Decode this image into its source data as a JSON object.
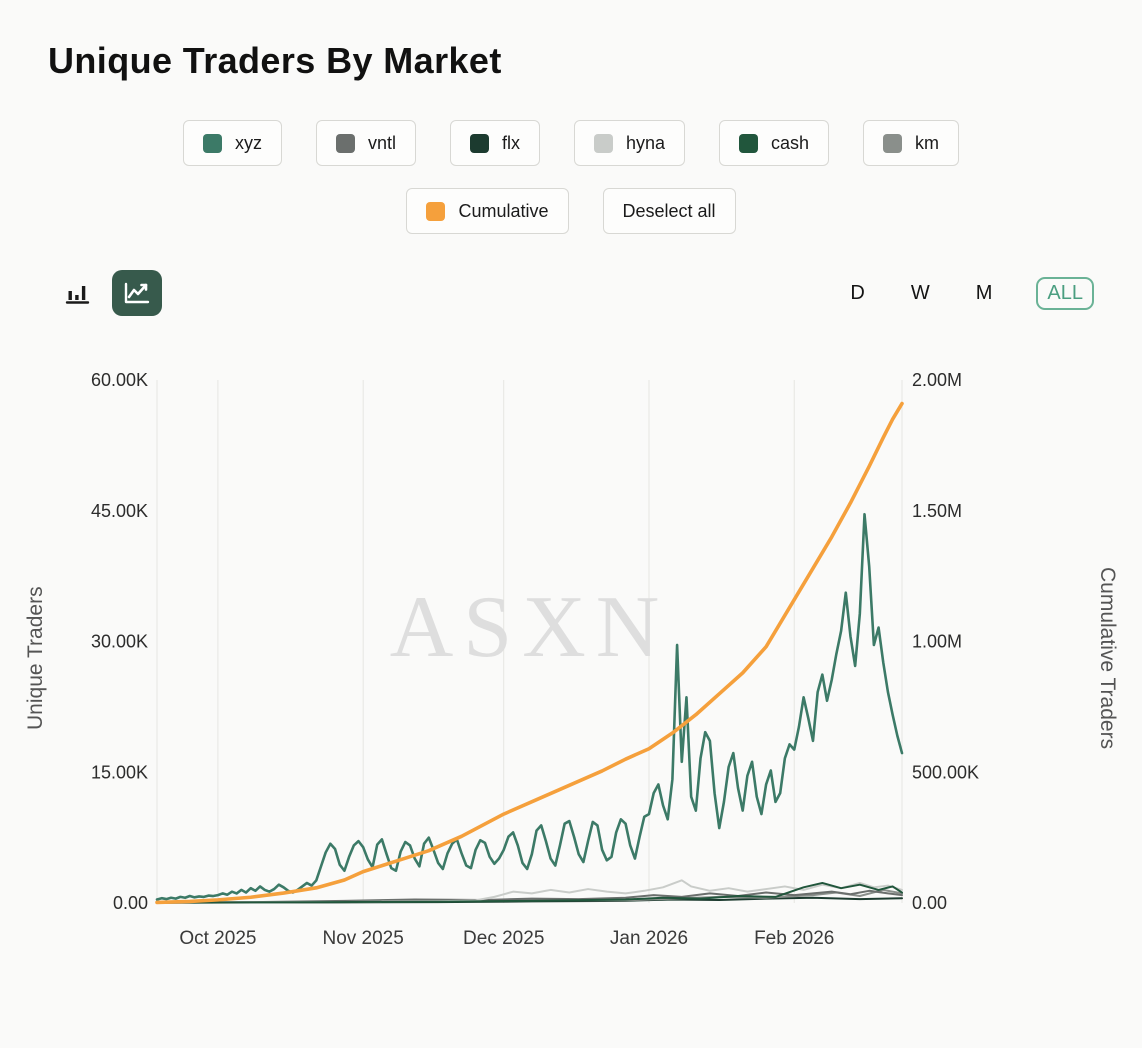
{
  "title": "Unique Traders By Market",
  "legend": {
    "row1": [
      {
        "label": "xyz",
        "color": "#3c7a67"
      },
      {
        "label": "vntl",
        "color": "#6b6f6d"
      },
      {
        "label": "flx",
        "color": "#1c3b2f"
      },
      {
        "label": "hyna",
        "color": "#c9ccc9"
      },
      {
        "label": "cash",
        "color": "#21563c"
      },
      {
        "label": "km",
        "color": "#8a8f8b"
      }
    ],
    "row2": [
      {
        "label": "Cumulative",
        "color": "#f5a03c"
      },
      {
        "label": "Deselect all"
      }
    ]
  },
  "controls": {
    "chart_types": [
      {
        "name": "bar",
        "selected": false
      },
      {
        "name": "line",
        "selected": true
      }
    ],
    "selected_type_color": "#375a4c",
    "ranges": [
      {
        "label": "D",
        "selected": false
      },
      {
        "label": "W",
        "selected": false
      },
      {
        "label": "M",
        "selected": false
      },
      {
        "label": "ALL",
        "selected": true
      }
    ],
    "range_active_color": "#4a9e80"
  },
  "chart_data": {
    "type": "line",
    "title": "Unique Traders By Market",
    "watermark": "ASXN",
    "grid": {
      "vertical_gridlines": true,
      "horizontal_gridlines": false
    },
    "x_axis": {
      "unit": "days since 2025-09-18",
      "domain": [
        0,
        159
      ],
      "tick_days": [
        13,
        44,
        74,
        105,
        136
      ],
      "tick_labels": [
        "Oct 2025",
        "Nov 2025",
        "Dec 2025",
        "Jan 2026",
        "Feb 2026"
      ]
    },
    "y_left": {
      "label": "Unique Traders",
      "range": [
        0,
        60000
      ],
      "tick_values": [
        0,
        15000,
        30000,
        45000,
        60000
      ],
      "ticks": [
        "0.00",
        "15.00K",
        "30.00K",
        "45.00K",
        "60.00K"
      ]
    },
    "y_right": {
      "label": "Cumulative Traders",
      "range": [
        0,
        2000000
      ],
      "tick_values": [
        0,
        500000,
        1000000,
        1500000,
        2000000
      ],
      "ticks": [
        "0.00",
        "500.00K",
        "1.00M",
        "1.50M",
        "2.00M"
      ]
    },
    "series": [
      {
        "name": "flx",
        "axis": "left",
        "color": "#1c3b2f",
        "width": 2,
        "x": [
          0,
          30,
          60,
          80,
          100,
          110,
          120,
          130,
          140,
          150,
          159
        ],
        "values": [
          30,
          60,
          100,
          180,
          250,
          400,
          350,
          500,
          600,
          450,
          550
        ]
      },
      {
        "name": "km",
        "axis": "left",
        "color": "#8a8f8b",
        "width": 2,
        "x": [
          0,
          25,
          50,
          70,
          85,
          100,
          110,
          120,
          130,
          140,
          145,
          150,
          155,
          159
        ],
        "values": [
          40,
          80,
          150,
          250,
          350,
          300,
          500,
          700,
          600,
          900,
          1200,
          800,
          1500,
          1100
        ]
      },
      {
        "name": "vntl",
        "axis": "left",
        "color": "#6b6f6d",
        "width": 2,
        "x": [
          0,
          20,
          40,
          55,
          70,
          80,
          90,
          100,
          106,
          112,
          118,
          124,
          130,
          136,
          140,
          144,
          148,
          152,
          156,
          159
        ],
        "values": [
          60,
          100,
          250,
          400,
          350,
          500,
          450,
          600,
          900,
          700,
          1100,
          800,
          1200,
          900,
          1100,
          1300,
          1000,
          1400,
          1100,
          900
        ]
      },
      {
        "name": "hyna",
        "axis": "left",
        "color": "#c9ccc9",
        "width": 2,
        "x": [
          0,
          20,
          40,
          60,
          68,
          72,
          74,
          76,
          80,
          84,
          88,
          92,
          96,
          100,
          104,
          108,
          112,
          114,
          118,
          122,
          126,
          130,
          134,
          138,
          142,
          146,
          150,
          153,
          156,
          159
        ],
        "values": [
          50,
          80,
          120,
          200,
          300,
          700,
          1000,
          1300,
          1100,
          1500,
          1200,
          1600,
          1300,
          1100,
          1400,
          1800,
          2600,
          1900,
          1400,
          1700,
          1300,
          1600,
          1900,
          1500,
          2100,
          1700,
          2300,
          1800,
          2000,
          1500
        ]
      },
      {
        "name": "cash",
        "axis": "left",
        "color": "#21563c",
        "width": 2,
        "x": [
          0,
          30,
          60,
          80,
          100,
          108,
          116,
          124,
          132,
          138,
          142,
          146,
          150,
          154,
          157,
          159
        ],
        "values": [
          40,
          80,
          150,
          250,
          400,
          600,
          500,
          800,
          700,
          1800,
          2300,
          1700,
          2100,
          1500,
          1900,
          1200
        ]
      },
      {
        "name": "xyz",
        "axis": "left",
        "color": "#3c7a67",
        "width": 2.6,
        "values": [
          400,
          550,
          450,
          600,
          500,
          700,
          600,
          800,
          650,
          750,
          700,
          850,
          800,
          900,
          1100,
          950,
          1300,
          1100,
          1500,
          1200,
          1700,
          1400,
          1900,
          1500,
          1300,
          1600,
          2100,
          1800,
          1400,
          1200,
          1500,
          1900,
          2300,
          2000,
          2600,
          4200,
          5800,
          6800,
          6200,
          4400,
          3700,
          5300,
          6600,
          7100,
          6400,
          5000,
          4100,
          6700,
          7300,
          5600,
          4000,
          3700,
          5900,
          7000,
          6600,
          5100,
          4200,
          6800,
          7500,
          6100,
          4600,
          3900,
          5700,
          6800,
          7300,
          5700,
          4300,
          4000,
          6100,
          7200,
          6900,
          5300,
          4500,
          5100,
          6100,
          7600,
          8100,
          6600,
          4600,
          3900,
          5600,
          8300,
          8900,
          7100,
          5100,
          4300,
          6600,
          9100,
          9400,
          7600,
          5600,
          4700,
          7100,
          9300,
          8900,
          6100,
          4900,
          5300,
          8100,
          9600,
          9100,
          6600,
          5100,
          7600,
          9900,
          10200,
          12600,
          13600,
          11200,
          9600,
          14200,
          29600,
          16200,
          23600,
          12200,
          10600,
          16600,
          19600,
          18600,
          12600,
          8600,
          11600,
          15600,
          17200,
          13200,
          10600,
          14600,
          16200,
          12200,
          10200,
          13600,
          15200,
          11600,
          12600,
          16600,
          18200,
          17600,
          20200,
          23600,
          21200,
          18600,
          24200,
          26200,
          23200,
          25600,
          28600,
          31200,
          35600,
          30600,
          27200,
          33200,
          44600,
          38600,
          29600,
          31600,
          27600,
          24200,
          21600,
          19200,
          17200
        ]
      },
      {
        "name": "Cumulative",
        "axis": "right",
        "color": "#f5a03c",
        "width": 3.6,
        "x": [
          0,
          7,
          13,
          20,
          27,
          34,
          40,
          44,
          51,
          58,
          65,
          74,
          81,
          88,
          95,
          100,
          105,
          110,
          115,
          120,
          125,
          130,
          136,
          140,
          144,
          148,
          152,
          155,
          157,
          159
        ],
        "values": [
          2000,
          6000,
          12000,
          22000,
          38000,
          58000,
          88000,
          120000,
          160000,
          200000,
          255000,
          340000,
          395000,
          450000,
          505000,
          550000,
          590000,
          650000,
          720000,
          800000,
          880000,
          980000,
          1160000,
          1280000,
          1400000,
          1530000,
          1670000,
          1780000,
          1850000,
          1910000
        ]
      }
    ]
  }
}
